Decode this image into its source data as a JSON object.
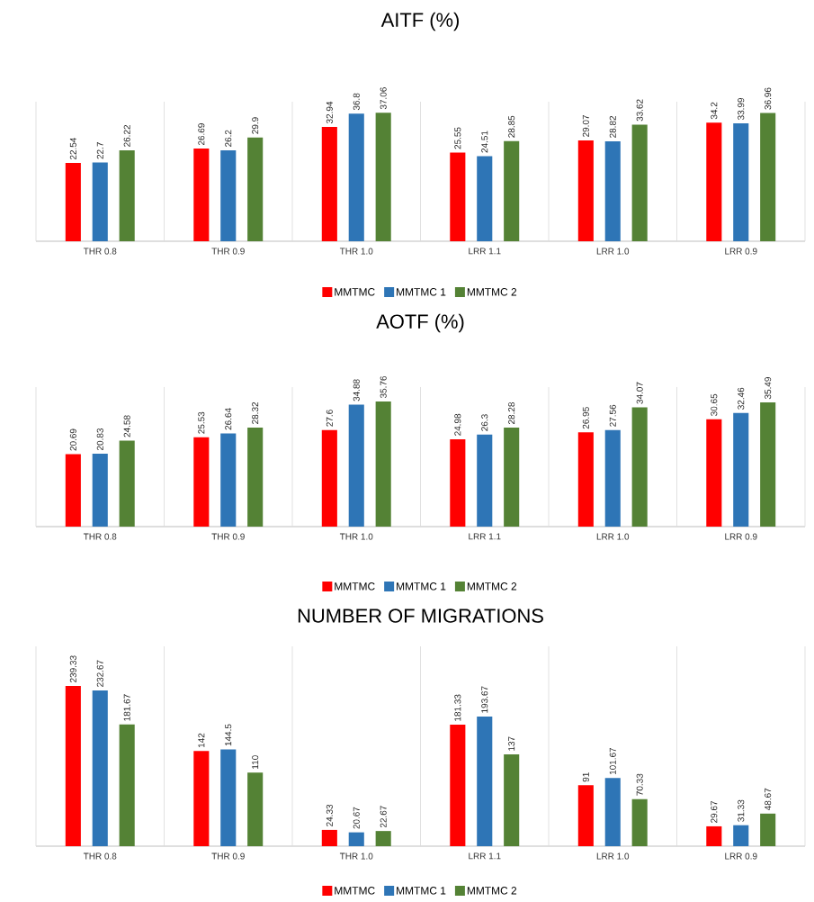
{
  "chart_data": [
    {
      "type": "bar",
      "title": "AITF (%)",
      "categories": [
        "THR 0.8",
        "THR 0.9",
        "THR 1.0",
        "LRR 1.1",
        "LRR 1.0",
        "LRR 0.9"
      ],
      "data_labels": true,
      "grid": "x",
      "legend": "bottom",
      "series": [
        {
          "name": "MMTMC",
          "color": "#ff0000",
          "values": [
            22.54,
            26.69,
            32.94,
            25.55,
            29.07,
            34.2
          ]
        },
        {
          "name": "MMTMC 1",
          "color": "#2e75b6",
          "values": [
            22.7,
            26.2,
            36.8,
            24.51,
            28.82,
            33.99
          ]
        },
        {
          "name": "MMTMC 2",
          "color": "#548235",
          "values": [
            26.22,
            29.9,
            37.06,
            28.85,
            33.62,
            36.96
          ]
        }
      ]
    },
    {
      "type": "bar",
      "title": "AOTF (%)",
      "categories": [
        "THR 0.8",
        "THR 0.9",
        "THR 1.0",
        "LRR 1.1",
        "LRR 1.0",
        "LRR 0.9"
      ],
      "data_labels": true,
      "grid": "x",
      "legend": "bottom",
      "series": [
        {
          "name": "MMTMC",
          "color": "#ff0000",
          "values": [
            20.69,
            25.53,
            27.6,
            24.98,
            26.95,
            30.65
          ]
        },
        {
          "name": "MMTMC 1",
          "color": "#2e75b6",
          "values": [
            20.83,
            26.64,
            34.88,
            26.3,
            27.56,
            32.46
          ]
        },
        {
          "name": "MMTMC 2",
          "color": "#548235",
          "values": [
            24.58,
            28.32,
            35.76,
            28.28,
            34.07,
            35.49
          ]
        }
      ]
    },
    {
      "type": "bar",
      "title": "NUMBER OF MIGRATIONS",
      "categories": [
        "THR 0.8",
        "THR 0.9",
        "THR 1.0",
        "LRR 1.1",
        "LRR 1.0",
        "LRR 0.9"
      ],
      "data_labels": true,
      "grid": "x",
      "legend": "bottom",
      "series": [
        {
          "name": "MMTMC",
          "color": "#ff0000",
          "values": [
            239.33,
            142,
            24.33,
            181.33,
            91,
            29.67
          ]
        },
        {
          "name": "MMTMC 1",
          "color": "#2e75b6",
          "values": [
            232.67,
            144.5,
            20.67,
            193.67,
            101.67,
            31.33
          ]
        },
        {
          "name": "MMTMC 2",
          "color": "#548235",
          "values": [
            181.67,
            110,
            22.67,
            137,
            70.33,
            48.67
          ]
        }
      ]
    }
  ]
}
